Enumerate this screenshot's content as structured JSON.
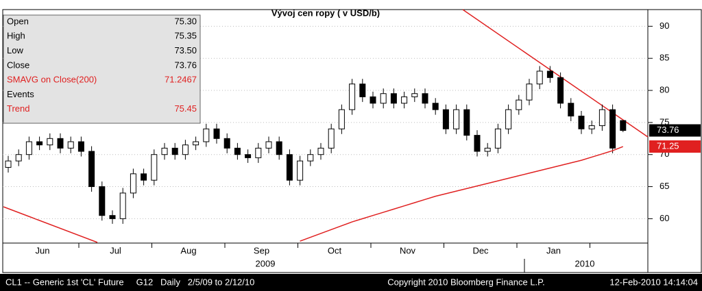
{
  "chart_data": {
    "type": "candlestick",
    "title": "Vývoj cen ropy ( v USD/b)",
    "ylim": [
      56.2,
      92.6
    ],
    "yticks": [
      60,
      65,
      70,
      75,
      80,
      85,
      90
    ],
    "x_labels": [
      "Jun",
      "Jul",
      "Aug",
      "Sep",
      "Oct",
      "Nov",
      "Dec",
      "Jan"
    ],
    "year_labels": [
      "2009",
      "2010"
    ],
    "ohlc": {
      "open": [
        68,
        69,
        70,
        72,
        71.5,
        72.5,
        71,
        72,
        70.5,
        65,
        60.5,
        60,
        64,
        67,
        66,
        70,
        71,
        70,
        71.5,
        72,
        74,
        72.5,
        71,
        70,
        69.5,
        71,
        72,
        70,
        66,
        69,
        70,
        71,
        74,
        77,
        81,
        79,
        78,
        79.5,
        78,
        79,
        79.5,
        78,
        77,
        74,
        77,
        73,
        70.5,
        71,
        74,
        77,
        78.5,
        81,
        83,
        82,
        78,
        76,
        74,
        74.5,
        77,
        75.3
      ],
      "high": [
        69.8,
        70.8,
        72.8,
        72.8,
        73.3,
        73.3,
        72.8,
        72.8,
        71.3,
        65.8,
        61.3,
        64.8,
        67.8,
        67.8,
        70.8,
        71.8,
        71.8,
        72.3,
        72.8,
        74.8,
        74.8,
        73.3,
        71.8,
        70.8,
        71.8,
        72.8,
        72.8,
        70.8,
        69.8,
        70.8,
        71.8,
        74.8,
        77.8,
        81.8,
        81.8,
        79.8,
        80.3,
        80.3,
        79.8,
        80.3,
        80.3,
        78.8,
        77.8,
        77.8,
        77.8,
        73.8,
        71.8,
        74.8,
        77.8,
        79.3,
        81.8,
        83.8,
        83.8,
        82.8,
        78.8,
        76.8,
        75.3,
        77.8,
        77.8,
        75.35
      ],
      "low": [
        67.2,
        68.2,
        69.2,
        70.7,
        70.7,
        70.2,
        70.2,
        69.7,
        64.2,
        59.7,
        59.2,
        59.2,
        63.2,
        65.2,
        65.2,
        69.2,
        69.2,
        69.2,
        70.7,
        71.2,
        71.7,
        70.2,
        69.2,
        68.7,
        68.7,
        70.2,
        69.2,
        65.2,
        65.2,
        68.2,
        69.2,
        70.2,
        73.2,
        76.2,
        78.2,
        77.2,
        77.2,
        77.2,
        77.2,
        78.2,
        77.2,
        76.2,
        73.2,
        73.2,
        72.2,
        69.7,
        69.7,
        70.2,
        73.2,
        76.2,
        77.7,
        80.2,
        81.2,
        77.2,
        75.2,
        73.2,
        73.2,
        73.7,
        70.2,
        73.5
      ],
      "close": [
        69,
        70,
        72,
        71.5,
        72.5,
        71,
        72,
        70.5,
        65,
        60.5,
        60,
        64,
        67,
        66,
        70,
        71,
        70,
        71.5,
        72,
        74,
        72.5,
        71,
        70,
        69.5,
        71,
        72,
        70,
        66,
        69,
        70,
        71,
        74,
        77,
        81,
        79,
        78,
        79.5,
        78,
        79,
        79.5,
        78,
        77,
        74,
        77,
        73,
        70.5,
        71,
        74,
        77,
        78.5,
        81,
        83,
        82,
        78,
        76,
        74,
        74.5,
        77,
        71,
        73.76
      ]
    },
    "sma": {
      "color": "#e02020",
      "values": [
        null,
        null,
        null,
        null,
        null,
        null,
        null,
        null,
        null,
        null,
        null,
        null,
        null,
        null,
        null,
        null,
        null,
        null,
        null,
        null,
        null,
        null,
        null,
        null,
        null,
        null,
        null,
        null,
        56.5,
        57.1,
        57.7,
        58.3,
        58.9,
        59.5,
        60.0,
        60.5,
        61.0,
        61.5,
        62.0,
        62.5,
        63.0,
        63.5,
        63.9,
        64.3,
        64.7,
        65.1,
        65.5,
        65.9,
        66.3,
        66.7,
        67.1,
        67.5,
        67.9,
        68.3,
        68.7,
        69.1,
        69.6,
        70.1,
        70.6,
        71.25
      ]
    }
  },
  "info_panel": {
    "rows": [
      {
        "label": "Open",
        "value": "75.30"
      },
      {
        "label": "High",
        "value": "75.35"
      },
      {
        "label": "Low",
        "value": "73.50"
      },
      {
        "label": "Close",
        "value": "73.76"
      },
      {
        "label": "SMAVG on Close(200)",
        "value": "71.2467"
      },
      {
        "label": "Events"
      },
      {
        "label": "Trend",
        "value": "75.45"
      }
    ]
  },
  "footer": {
    "left": "CL1 -- Generic 1st 'CL' Future     G12   Daily   2/5/09 to 2/12/10",
    "center": "Copyright 2010 Bloomberg Finance L.P.",
    "right": "12-Feb-2010 14:14:04"
  }
}
